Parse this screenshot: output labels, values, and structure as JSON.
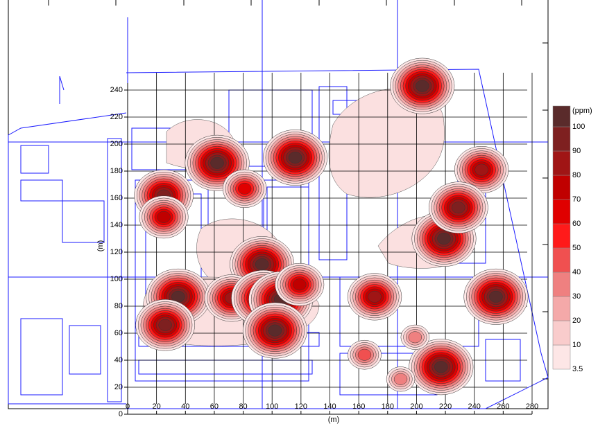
{
  "chart_data": {
    "type": "contour",
    "x_label": "(m)",
    "y_label": "(m)",
    "xlim": [
      0,
      280
    ],
    "ylim": [
      0,
      240
    ],
    "xticks": [
      0,
      20,
      40,
      60,
      80,
      100,
      120,
      140,
      160,
      180,
      200,
      220,
      240,
      260,
      280
    ],
    "yticks": [
      0,
      20,
      40,
      60,
      80,
      100,
      120,
      140,
      160,
      180,
      200,
      220,
      240
    ],
    "grid": true,
    "colorbar": {
      "unit": "(ppm)",
      "levels": [
        3.5,
        10,
        20,
        30,
        40,
        50,
        60,
        70,
        80,
        90,
        100
      ],
      "colors": [
        "#fde6e6",
        "#f9cccc",
        "#f4a9a9",
        "#ef8080",
        "#f05050",
        "#ff1a1a",
        "#e00000",
        "#c00000",
        "#a01515",
        "#7e2020",
        "#5a2b2b"
      ]
    },
    "hotspots": [
      {
        "x": 204,
        "y": 243,
        "value": 100
      },
      {
        "x": 62,
        "y": 186,
        "value": 100
      },
      {
        "x": 116,
        "y": 190,
        "value": 100
      },
      {
        "x": 245,
        "y": 181,
        "value": 80
      },
      {
        "x": 25,
        "y": 162,
        "value": 90
      },
      {
        "x": 25,
        "y": 146,
        "value": 70
      },
      {
        "x": 81,
        "y": 167,
        "value": 60
      },
      {
        "x": 219,
        "y": 130,
        "value": 100
      },
      {
        "x": 229,
        "y": 153,
        "value": 90
      },
      {
        "x": 93,
        "y": 111,
        "value": 100
      },
      {
        "x": 35,
        "y": 87,
        "value": 100
      },
      {
        "x": 72,
        "y": 86,
        "value": 80
      },
      {
        "x": 94,
        "y": 86,
        "value": 100
      },
      {
        "x": 106,
        "y": 85,
        "value": 100
      },
      {
        "x": 119,
        "y": 96,
        "value": 70
      },
      {
        "x": 102,
        "y": 62,
        "value": 100
      },
      {
        "x": 26,
        "y": 66,
        "value": 90
      },
      {
        "x": 171,
        "y": 87,
        "value": 80
      },
      {
        "x": 255,
        "y": 87,
        "value": 100
      },
      {
        "x": 217,
        "y": 35,
        "value": 100
      },
      {
        "x": 199,
        "y": 57,
        "value": 30
      },
      {
        "x": 189,
        "y": 26,
        "value": 30
      },
      {
        "x": 164,
        "y": 44,
        "value": 40
      }
    ]
  }
}
